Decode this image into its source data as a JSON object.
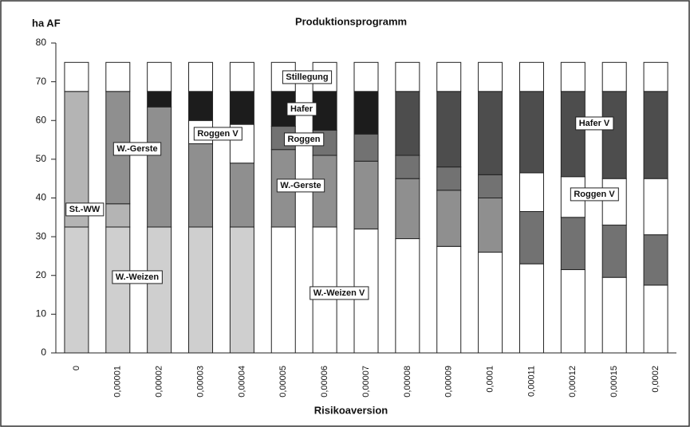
{
  "chart_data": {
    "type": "stacked_bar",
    "title": "Produktionsprogramm",
    "y_label": "ha AF",
    "x_label": "Risikoaversion",
    "categories": [
      "0",
      "0,00001",
      "0,00002",
      "0,00003",
      "0,00004",
      "0,00005",
      "0,00006",
      "0,00007",
      "0,00008",
      "0,00009",
      "0,0001",
      "0,00011",
      "0,00012",
      "0,00015",
      "0,0002"
    ],
    "series": [
      {
        "name": "W.-Weizen",
        "color": "#cfcfcf",
        "values": [
          32.5,
          32.5,
          32.5,
          32.5,
          32.5,
          null,
          null,
          null,
          null,
          null,
          null,
          null,
          null,
          null,
          null
        ]
      },
      {
        "name": "W.-Weizen V",
        "color": "#ffffff",
        "values": [
          null,
          null,
          null,
          null,
          null,
          32.5,
          32.5,
          32,
          29.5,
          27.5,
          26,
          23,
          21.5,
          19.5,
          17.5
        ]
      },
      {
        "name": "St.-WW",
        "color": "#b4b4b4",
        "values": [
          35,
          6,
          null,
          null,
          null,
          null,
          null,
          null,
          null,
          null,
          null,
          null,
          null,
          null,
          null
        ]
      },
      {
        "name": "W.-Gerste",
        "color": "#8f8f8f",
        "values": [
          null,
          29,
          31,
          21.5,
          16.5,
          20,
          18.5,
          17.5,
          15.5,
          14.5,
          14,
          null,
          null,
          null,
          null
        ]
      },
      {
        "name": "Roggen",
        "color": "#727272",
        "values": [
          null,
          null,
          null,
          null,
          null,
          6,
          6.5,
          7,
          6,
          6,
          6,
          13.5,
          13.5,
          13.5,
          13
        ]
      },
      {
        "name": "Roggen V",
        "color": "#ffffff",
        "values": [
          null,
          null,
          null,
          6,
          10,
          null,
          null,
          null,
          null,
          null,
          null,
          10,
          10.5,
          12,
          14.5
        ]
      },
      {
        "name": "Hafer",
        "color": "#1c1c1c",
        "values": [
          null,
          null,
          4,
          7.5,
          8.5,
          9,
          10,
          11,
          null,
          null,
          null,
          null,
          null,
          null,
          null
        ]
      },
      {
        "name": "Hafer V",
        "color": "#4d4d4d",
        "values": [
          null,
          null,
          null,
          null,
          null,
          null,
          null,
          null,
          16.5,
          19.5,
          21.5,
          21,
          22,
          22.5,
          22.5
        ]
      },
      {
        "name": "Stillegung",
        "color": "#ffffff",
        "values": [
          7.5,
          7.5,
          7.5,
          7.5,
          7.5,
          7.5,
          7.5,
          7.5,
          7.5,
          7.5,
          7.5,
          7.5,
          7.5,
          7.5,
          7.5
        ]
      }
    ],
    "ylim": [
      0,
      80
    ],
    "yticks": [
      0,
      10,
      20,
      30,
      40,
      50,
      60,
      70,
      80
    ],
    "grid": false
  }
}
